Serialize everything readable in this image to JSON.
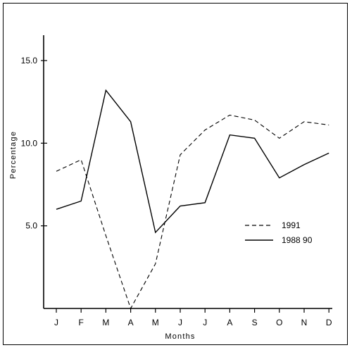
{
  "chart_data": {
    "type": "line",
    "title": "",
    "xlabel": "Months",
    "ylabel": "Percentage",
    "categories": [
      "J",
      "F",
      "M",
      "A",
      "M",
      "J",
      "J",
      "A",
      "S",
      "O",
      "N",
      "D"
    ],
    "ylim": [
      0,
      16.5
    ],
    "yticks": [
      "5.0",
      "10.0",
      "15.0"
    ],
    "ytick_values": [
      5.0,
      10.0,
      15.0
    ],
    "grid": false,
    "legend_position": "right",
    "series": [
      {
        "name": "1991",
        "style": "dashed",
        "values": [
          8.3,
          9.0,
          4.4,
          0.0,
          2.7,
          9.3,
          10.8,
          11.7,
          11.4,
          10.3,
          11.3,
          11.1
        ]
      },
      {
        "name": "1988 90",
        "style": "solid",
        "values": [
          6.0,
          6.5,
          13.2,
          11.3,
          4.6,
          6.2,
          6.4,
          10.5,
          10.3,
          7.9,
          8.7,
          9.4
        ]
      }
    ]
  },
  "colors": {
    "line": "#000000",
    "background": "#ffffff"
  }
}
